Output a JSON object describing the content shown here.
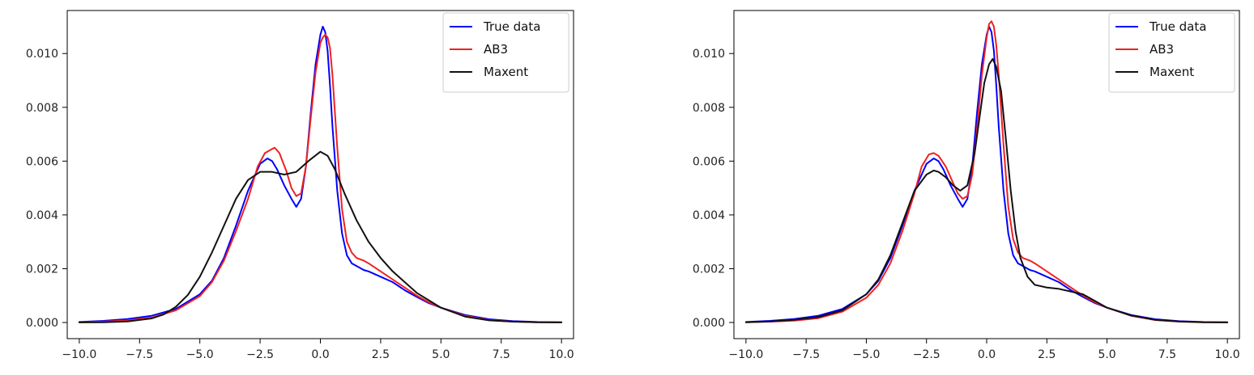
{
  "chart_data": [
    {
      "type": "line",
      "title": "",
      "xlabel": "",
      "ylabel": "",
      "xlim": [
        -10.5,
        10.5
      ],
      "ylim": [
        -0.0006,
        0.0116
      ],
      "xticks": [
        -10.0,
        -7.5,
        -5.0,
        -2.5,
        0.0,
        2.5,
        5.0,
        7.5,
        10.0
      ],
      "xtick_labels": [
        "−10.0",
        "−7.5",
        "−5.0",
        "−2.5",
        "0.0",
        "2.5",
        "5.0",
        "7.5",
        "10.0"
      ],
      "yticks": [
        0.0,
        0.002,
        0.004,
        0.006,
        0.008,
        0.01
      ],
      "ytick_labels": [
        "0.000",
        "0.002",
        "0.004",
        "0.006",
        "0.008",
        "0.010"
      ],
      "grid": false,
      "legend_position": "top-right",
      "series": [
        {
          "name": "True data",
          "color": "#0000ff",
          "x": [
            -10,
            -9,
            -8,
            -7,
            -6,
            -5,
            -4.5,
            -4,
            -3.5,
            -3,
            -2.5,
            -2.2,
            -2,
            -1.8,
            -1.5,
            -1.2,
            -1,
            -0.8,
            -0.6,
            -0.4,
            -0.2,
            0,
            0.1,
            0.2,
            0.3,
            0.4,
            0.5,
            0.7,
            0.9,
            1.1,
            1.3,
            1.5,
            1.8,
            2,
            2.5,
            3,
            3.5,
            4,
            4.5,
            5,
            6,
            7,
            8,
            9,
            10
          ],
          "y": [
            2e-05,
            6e-05,
            0.00013,
            0.00025,
            0.0005,
            0.00105,
            0.00155,
            0.0024,
            0.0036,
            0.0049,
            0.0059,
            0.0061,
            0.006,
            0.0057,
            0.0051,
            0.0046,
            0.0043,
            0.0046,
            0.0058,
            0.0078,
            0.0096,
            0.0107,
            0.011,
            0.0108,
            0.0101,
            0.0088,
            0.0073,
            0.0049,
            0.0033,
            0.0025,
            0.0022,
            0.0021,
            0.00195,
            0.0019,
            0.0017,
            0.0015,
            0.0012,
            0.00095,
            0.00072,
            0.00055,
            0.00028,
            0.00012,
            5e-05,
            2e-05,
            1e-05
          ]
        },
        {
          "name": "AB3",
          "color": "#ee2222",
          "x": [
            -10,
            -9,
            -8,
            -7,
            -6,
            -5,
            -4.5,
            -4,
            -3.5,
            -3,
            -2.6,
            -2.3,
            -2.1,
            -1.9,
            -1.7,
            -1.4,
            -1.2,
            -1,
            -0.8,
            -0.6,
            -0.4,
            -0.2,
            0,
            0.1,
            0.2,
            0.3,
            0.4,
            0.5,
            0.7,
            0.9,
            1.1,
            1.3,
            1.5,
            1.8,
            2,
            2.5,
            3,
            3.5,
            4,
            4.5,
            5,
            6,
            7,
            8,
            9,
            10
          ],
          "y": [
            1e-05,
            3e-05,
            8e-05,
            0.00018,
            0.00045,
            0.00098,
            0.0015,
            0.0023,
            0.0034,
            0.0046,
            0.0058,
            0.0063,
            0.0064,
            0.0065,
            0.0063,
            0.0056,
            0.005,
            0.0047,
            0.0048,
            0.0058,
            0.0076,
            0.0093,
            0.0104,
            0.0106,
            0.0107,
            0.0106,
            0.0102,
            0.0092,
            0.0065,
            0.0042,
            0.003,
            0.0026,
            0.0024,
            0.0023,
            0.0022,
            0.0019,
            0.0016,
            0.0013,
            0.001,
            0.00075,
            0.00055,
            0.00025,
            9e-05,
            3e-05,
            1e-05,
            5e-06
          ]
        },
        {
          "name": "Maxent",
          "color": "#111111",
          "x": [
            -10,
            -9,
            -8,
            -7,
            -6.5,
            -6,
            -5.5,
            -5,
            -4.5,
            -4,
            -3.5,
            -3,
            -2.5,
            -2,
            -1.5,
            -1,
            -0.5,
            0,
            0.3,
            0.6,
            1,
            1.5,
            2,
            2.5,
            3,
            3.5,
            4,
            5,
            6,
            7,
            8,
            9,
            10
          ],
          "y": [
            5e-06,
            1e-05,
            4e-05,
            0.00015,
            0.0003,
            0.00058,
            0.00102,
            0.0017,
            0.0026,
            0.0036,
            0.0046,
            0.0053,
            0.0056,
            0.0056,
            0.0055,
            0.0056,
            0.006,
            0.00635,
            0.0062,
            0.0057,
            0.0048,
            0.0038,
            0.003,
            0.0024,
            0.0019,
            0.0015,
            0.0011,
            0.00055,
            0.00022,
            8e-05,
            3e-05,
            1e-05,
            5e-06
          ]
        }
      ]
    },
    {
      "type": "line",
      "title": "",
      "xlabel": "",
      "ylabel": "",
      "xlim": [
        -10.5,
        10.5
      ],
      "ylim": [
        -0.0006,
        0.0116
      ],
      "xticks": [
        -10.0,
        -7.5,
        -5.0,
        -2.5,
        0.0,
        2.5,
        5.0,
        7.5,
        10.0
      ],
      "xtick_labels": [
        "−10.0",
        "−7.5",
        "−5.0",
        "−2.5",
        "0.0",
        "2.5",
        "5.0",
        "7.5",
        "10.0"
      ],
      "yticks": [
        0.0,
        0.002,
        0.004,
        0.006,
        0.008,
        0.01
      ],
      "ytick_labels": [
        "0.000",
        "0.002",
        "0.004",
        "0.006",
        "0.008",
        "0.010"
      ],
      "grid": false,
      "legend_position": "top-right",
      "series": [
        {
          "name": "True data",
          "color": "#0000ff",
          "x": [
            -10,
            -9,
            -8,
            -7,
            -6,
            -5,
            -4.5,
            -4,
            -3.5,
            -3,
            -2.5,
            -2.2,
            -2,
            -1.8,
            -1.5,
            -1.2,
            -1,
            -0.8,
            -0.6,
            -0.4,
            -0.2,
            0,
            0.1,
            0.2,
            0.3,
            0.4,
            0.5,
            0.7,
            0.9,
            1.1,
            1.3,
            1.5,
            1.8,
            2,
            2.5,
            3,
            3.5,
            4,
            4.5,
            5,
            6,
            7,
            8,
            9,
            10
          ],
          "y": [
            2e-05,
            6e-05,
            0.00013,
            0.00025,
            0.0005,
            0.00105,
            0.00155,
            0.0024,
            0.0036,
            0.0049,
            0.0059,
            0.0061,
            0.006,
            0.0057,
            0.0051,
            0.0046,
            0.0043,
            0.0046,
            0.0058,
            0.0078,
            0.0096,
            0.0107,
            0.011,
            0.0108,
            0.0101,
            0.0088,
            0.0073,
            0.0049,
            0.0033,
            0.0025,
            0.0022,
            0.0021,
            0.00195,
            0.0019,
            0.0017,
            0.0015,
            0.0012,
            0.00095,
            0.00072,
            0.00055,
            0.00028,
            0.00012,
            5e-05,
            2e-05,
            1e-05
          ]
        },
        {
          "name": "AB3",
          "color": "#ee2222",
          "x": [
            -10,
            -9,
            -8,
            -7,
            -6,
            -5,
            -4.5,
            -4,
            -3.5,
            -3,
            -2.7,
            -2.4,
            -2.2,
            -2,
            -1.7,
            -1.4,
            -1.2,
            -1,
            -0.8,
            -0.6,
            -0.4,
            -0.2,
            0,
            0.1,
            0.2,
            0.3,
            0.4,
            0.5,
            0.7,
            0.9,
            1.1,
            1.3,
            1.5,
            1.8,
            2,
            2.5,
            3,
            3.5,
            4,
            4.5,
            5,
            6,
            7,
            8,
            9,
            10
          ],
          "y": [
            1e-05,
            3e-05,
            7e-05,
            0.00016,
            0.0004,
            0.00092,
            0.0014,
            0.0022,
            0.0034,
            0.0048,
            0.0058,
            0.00625,
            0.0063,
            0.0062,
            0.0058,
            0.0052,
            0.0048,
            0.0046,
            0.0047,
            0.0055,
            0.0072,
            0.0092,
            0.0106,
            0.0111,
            0.0112,
            0.011,
            0.0103,
            0.0092,
            0.0066,
            0.0043,
            0.0031,
            0.0026,
            0.0024,
            0.0023,
            0.0022,
            0.0019,
            0.0016,
            0.0013,
            0.001,
            0.00075,
            0.00055,
            0.00025,
            9e-05,
            3e-05,
            1e-05,
            5e-06
          ]
        },
        {
          "name": "Maxent",
          "color": "#111111",
          "x": [
            -10,
            -9,
            -8,
            -7,
            -6,
            -5,
            -4.5,
            -4,
            -3.5,
            -3,
            -2.5,
            -2.2,
            -2,
            -1.7,
            -1.4,
            -1.1,
            -0.8,
            -0.5,
            -0.3,
            -0.1,
            0.1,
            0.25,
            0.4,
            0.6,
            0.8,
            1,
            1.2,
            1.4,
            1.7,
            2,
            2.5,
            3,
            3.5,
            4,
            4.5,
            5,
            6,
            7,
            8,
            9,
            10
          ],
          "y": [
            1e-05,
            4e-05,
            0.0001,
            0.0002,
            0.00045,
            0.00105,
            0.0016,
            0.0025,
            0.0037,
            0.0049,
            0.0055,
            0.00565,
            0.0056,
            0.0054,
            0.0051,
            0.0049,
            0.0051,
            0.0063,
            0.0076,
            0.0089,
            0.0096,
            0.0098,
            0.0095,
            0.0086,
            0.0068,
            0.0049,
            0.0034,
            0.0024,
            0.0017,
            0.0014,
            0.0013,
            0.00125,
            0.00115,
            0.00105,
            0.0008,
            0.00055,
            0.00026,
            0.0001,
            4e-05,
            1e-05,
            5e-06
          ]
        }
      ]
    }
  ]
}
